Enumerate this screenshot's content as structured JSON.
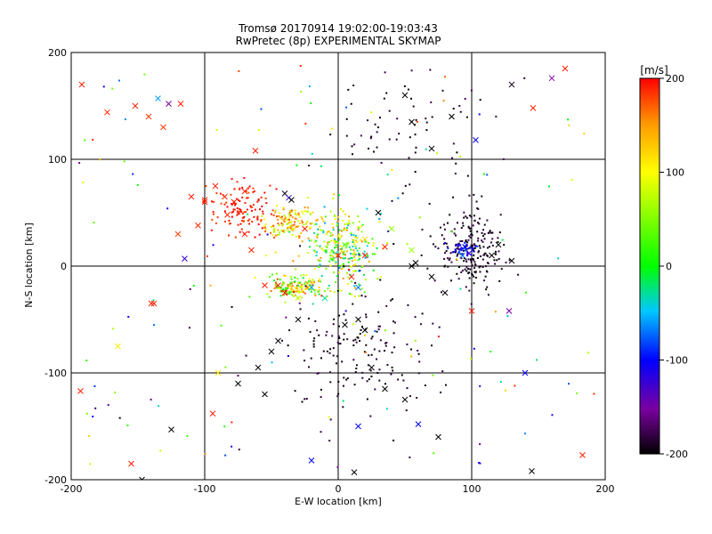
{
  "chart_data": {
    "type": "scatter",
    "title": "Tromsø 20170914 19:02:00-19:03:43",
    "subtitle": "RwPretec (8p) EXPERIMENTAL SKYMAP",
    "xlabel": "E-W location [km]",
    "ylabel": "N-S location [km]",
    "xlim": [
      -200,
      200
    ],
    "ylim": [
      -200,
      200
    ],
    "xticks": [
      "-200",
      "-100",
      "0",
      "100",
      "200"
    ],
    "yticks": [
      "-200",
      "-100",
      "0",
      "100",
      "200"
    ],
    "grid": true,
    "colorbar": {
      "unit": "[m/s]",
      "range": [
        -200,
        200
      ],
      "ticks": [
        "200",
        "100",
        "0",
        "-100",
        "-200"
      ],
      "colormap": [
        "#000000",
        "#7a00a0",
        "#0000ff",
        "#00c8ff",
        "#00ff00",
        "#ffff00",
        "#ff9900",
        "#ff0000"
      ]
    },
    "clusters": [
      {
        "region": "west",
        "x": -70,
        "y": 55,
        "sx": 12,
        "sy": 12,
        "n": 120,
        "v": 190,
        "dv": 15
      },
      {
        "region": "west-north",
        "x": -35,
        "y": 40,
        "sx": 10,
        "sy": 8,
        "n": 140,
        "v": 120,
        "dv": 60
      },
      {
        "region": "center",
        "x": 5,
        "y": 15,
        "sx": 12,
        "sy": 18,
        "n": 260,
        "v": 50,
        "dv": 110
      },
      {
        "region": "south-west",
        "x": -30,
        "y": -20,
        "sx": 10,
        "sy": 6,
        "n": 160,
        "v": 90,
        "dv": 110
      },
      {
        "region": "east",
        "x": 100,
        "y": 15,
        "sx": 12,
        "sy": 20,
        "n": 220,
        "v": -190,
        "dv": 15
      },
      {
        "region": "east-blue",
        "x": 95,
        "y": 15,
        "sx": 4,
        "sy": 4,
        "n": 40,
        "v": -100,
        "dv": 25
      },
      {
        "region": "south",
        "x": 10,
        "y": -80,
        "sx": 30,
        "sy": 35,
        "n": 160,
        "v": -190,
        "dv": 15
      },
      {
        "region": "north",
        "x": 50,
        "y": 130,
        "sx": 30,
        "sy": 30,
        "n": 70,
        "v": -190,
        "dv": 20
      },
      {
        "region": "scatter",
        "x": 0,
        "y": 0,
        "sx": 100,
        "sy": 100,
        "n": 160,
        "v": 0,
        "dv": 200
      }
    ],
    "cross_points": [
      {
        "x": -192,
        "y": 170,
        "v": 190
      },
      {
        "x": -173,
        "y": 144,
        "v": 185
      },
      {
        "x": -152,
        "y": 150,
        "v": 190
      },
      {
        "x": -142,
        "y": 140,
        "v": 185
      },
      {
        "x": -135,
        "y": 157,
        "v": -60
      },
      {
        "x": -127,
        "y": 152,
        "v": -150
      },
      {
        "x": -118,
        "y": 152,
        "v": 190
      },
      {
        "x": -131,
        "y": 130,
        "v": 180
      },
      {
        "x": -62,
        "y": 108,
        "v": 190
      },
      {
        "x": -193,
        "y": -117,
        "v": 190
      },
      {
        "x": -165,
        "y": -75,
        "v": 110
      },
      {
        "x": -155,
        "y": -185,
        "v": 190
      },
      {
        "x": -138,
        "y": -35,
        "v": 190
      },
      {
        "x": -125,
        "y": -153,
        "v": -200
      },
      {
        "x": -94,
        "y": -138,
        "v": 190
      },
      {
        "x": -90,
        "y": -100,
        "v": 110
      },
      {
        "x": -115,
        "y": 7,
        "v": -120
      },
      {
        "x": 103,
        "y": 118,
        "v": -100
      },
      {
        "x": 130,
        "y": 170,
        "v": -190
      },
      {
        "x": 160,
        "y": 176,
        "v": -150
      },
      {
        "x": 146,
        "y": 148,
        "v": 190
      },
      {
        "x": 183,
        "y": -177,
        "v": 190
      },
      {
        "x": 140,
        "y": -100,
        "v": -100
      },
      {
        "x": 145,
        "y": -192,
        "v": -200
      },
      {
        "x": 128,
        "y": -42,
        "v": -150
      },
      {
        "x": 100,
        "y": -42,
        "v": 190
      },
      {
        "x": 60,
        "y": -148,
        "v": -100
      },
      {
        "x": 75,
        "y": -160,
        "v": -200
      },
      {
        "x": 15,
        "y": -150,
        "v": -100
      },
      {
        "x": 12,
        "y": -193,
        "v": -200
      },
      {
        "x": -20,
        "y": -182,
        "v": -100
      },
      {
        "x": -147,
        "y": -200,
        "v": -200
      },
      {
        "x": -100,
        "y": 62,
        "v": 190
      },
      {
        "x": -105,
        "y": 38,
        "v": 190
      },
      {
        "x": -85,
        "y": 65,
        "v": 185
      },
      {
        "x": -78,
        "y": 60,
        "v": 190
      },
      {
        "x": -83,
        "y": 48,
        "v": 190
      },
      {
        "x": -92,
        "y": 75,
        "v": 190
      },
      {
        "x": -120,
        "y": 30,
        "v": 180
      },
      {
        "x": -70,
        "y": 70,
        "v": 190
      },
      {
        "x": -40,
        "y": 68,
        "v": -190
      },
      {
        "x": -37,
        "y": 64,
        "v": -120
      },
      {
        "x": -35,
        "y": 62,
        "v": -200
      },
      {
        "x": -25,
        "y": 35,
        "v": 190
      },
      {
        "x": 0,
        "y": 10,
        "v": 190
      },
      {
        "x": 5,
        "y": 20,
        "v": 40
      },
      {
        "x": 20,
        "y": 10,
        "v": 190
      },
      {
        "x": 20,
        "y": 25,
        "v": 120
      },
      {
        "x": 35,
        "y": 18,
        "v": 190
      },
      {
        "x": 40,
        "y": 35,
        "v": 60
      },
      {
        "x": 30,
        "y": 50,
        "v": -200
      },
      {
        "x": 55,
        "y": 15,
        "v": 60
      },
      {
        "x": -45,
        "y": -18,
        "v": 190
      },
      {
        "x": -40,
        "y": -25,
        "v": 190
      },
      {
        "x": -55,
        "y": -18,
        "v": 190
      },
      {
        "x": -30,
        "y": -30,
        "v": 80
      },
      {
        "x": -20,
        "y": -20,
        "v": -60
      },
      {
        "x": -10,
        "y": -30,
        "v": -30
      },
      {
        "x": 10,
        "y": -10,
        "v": 190
      },
      {
        "x": 15,
        "y": -20,
        "v": -70
      },
      {
        "x": 55,
        "y": 0,
        "v": -200
      },
      {
        "x": 58,
        "y": 3,
        "v": -200
      },
      {
        "x": 70,
        "y": -10,
        "v": -200
      },
      {
        "x": 80,
        "y": -25,
        "v": -200
      },
      {
        "x": 95,
        "y": 18,
        "v": -100
      },
      {
        "x": 98,
        "y": 12,
        "v": -120
      },
      {
        "x": 93,
        "y": 10,
        "v": -70
      },
      {
        "x": 115,
        "y": 10,
        "v": -200
      },
      {
        "x": 120,
        "y": 20,
        "v": -200
      },
      {
        "x": 130,
        "y": 5,
        "v": -200
      },
      {
        "x": -75,
        "y": -110,
        "v": -200
      },
      {
        "x": -60,
        "y": -95,
        "v": -200
      },
      {
        "x": -50,
        "y": -80,
        "v": -200
      },
      {
        "x": -45,
        "y": -70,
        "v": -200
      },
      {
        "x": -30,
        "y": -50,
        "v": -200
      },
      {
        "x": -55,
        "y": -120,
        "v": -200
      },
      {
        "x": 15,
        "y": -50,
        "v": -200
      },
      {
        "x": 20,
        "y": -60,
        "v": -200
      },
      {
        "x": 5,
        "y": -55,
        "v": -200
      },
      {
        "x": 25,
        "y": -95,
        "v": -200
      },
      {
        "x": 35,
        "y": -115,
        "v": -200
      },
      {
        "x": 50,
        "y": -125,
        "v": -200
      },
      {
        "x": -65,
        "y": 15,
        "v": 190
      },
      {
        "x": -70,
        "y": 30,
        "v": 190
      },
      {
        "x": -110,
        "y": 65,
        "v": 190
      },
      {
        "x": 170,
        "y": 185,
        "v": 190
      },
      {
        "x": 85,
        "y": 140,
        "v": -200
      },
      {
        "x": 55,
        "y": 135,
        "v": -200
      },
      {
        "x": 50,
        "y": 160,
        "v": -200
      },
      {
        "x": 70,
        "y": 110,
        "v": -200
      },
      {
        "x": -140,
        "y": -35,
        "v": 190
      },
      {
        "x": -100,
        "y": 60,
        "v": 190
      }
    ]
  }
}
